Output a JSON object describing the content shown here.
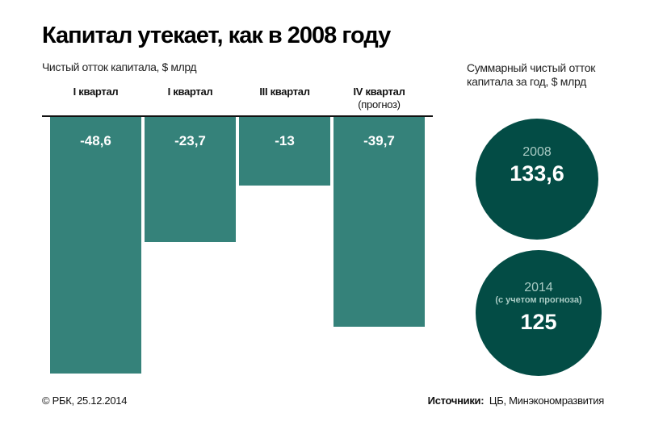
{
  "title": "Капитал утекает, как в 2008 году",
  "chart_data": {
    "type": "bar",
    "title": "Капитал утекает, как в 2008 году",
    "ylabel": "Чистый отток капитала, $ млрд",
    "xlabel": "",
    "categories": [
      "I квартал",
      "I квартал",
      "III квартал",
      "IV квартал"
    ],
    "category_notes": [
      "",
      "",
      "",
      "(прогноз)"
    ],
    "values": [
      -48.6,
      -23.7,
      -13,
      -39.7
    ],
    "value_labels": [
      "-48,6",
      "-23,7",
      "-13",
      "-39,7"
    ],
    "ylim": [
      -48.6,
      0
    ],
    "grid": false,
    "color": "#35827a"
  },
  "totals": {
    "title": "Суммарный чистый отток капитала за год, $ млрд",
    "items": [
      {
        "year": "2008",
        "note": "",
        "value": "133,6"
      },
      {
        "year": "2014",
        "note": "(с учетом прогноза)",
        "value": "125"
      }
    ],
    "color": "#034c45"
  },
  "footer": {
    "copyright": "© РБК, 25.12.2014",
    "sources_label": "Источники:",
    "sources": "ЦБ, Минэкономразвития"
  }
}
